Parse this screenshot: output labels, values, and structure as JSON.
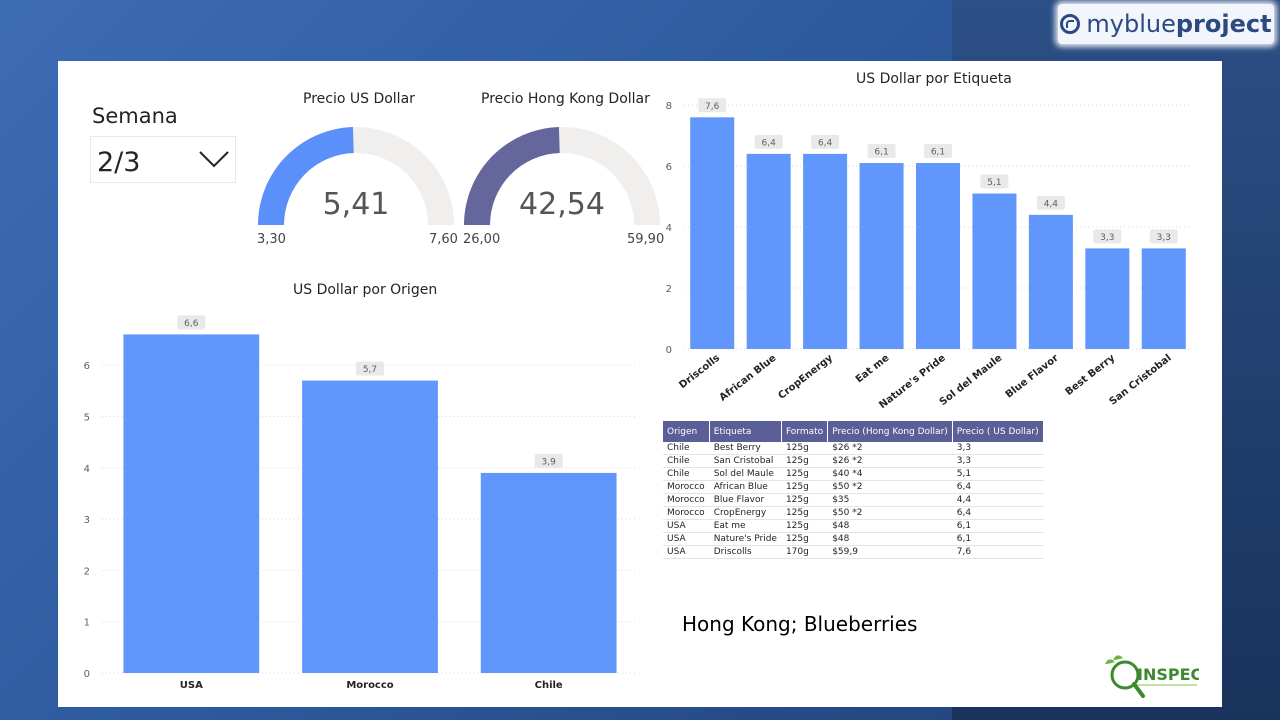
{
  "logo": {
    "light": "myblue",
    "bold": "project"
  },
  "slicer": {
    "title": "Semana",
    "value": "2/3"
  },
  "gauge_usd": {
    "title": "Precio US Dollar",
    "value": "5,41",
    "min": "3,30",
    "max": "7,60",
    "fraction": 0.49,
    "color": "#5b8ff9"
  },
  "gauge_hkd": {
    "title": "Precio Hong Kong Dollar",
    "value": "42,54",
    "min": "26,00",
    "max": "59,90",
    "fraction": 0.49,
    "color": "#64669c"
  },
  "chart_data": [
    {
      "type": "bar",
      "title": "US Dollar por Origen",
      "categories": [
        "USA",
        "Morocco",
        "Chile"
      ],
      "values": [
        6.6,
        5.7,
        3.9
      ],
      "labels": [
        "6,6",
        "5,7",
        "3,9"
      ],
      "yticks": [
        0,
        1,
        2,
        3,
        4,
        5,
        6
      ],
      "ylim": [
        0,
        6.9
      ],
      "grid": true,
      "color": "#6197fd"
    },
    {
      "type": "bar",
      "title": "US Dollar por Etiqueta",
      "categories": [
        "Driscolls",
        "African Blue",
        "CropEnergy",
        "Eat me",
        "Nature's Pride",
        "Sol del Maule",
        "Blue Flavor",
        "Best Berry",
        "San Cristobal"
      ],
      "values": [
        7.6,
        6.4,
        6.4,
        6.1,
        6.1,
        5.1,
        4.4,
        3.3,
        3.3
      ],
      "labels": [
        "7,6",
        "6,4",
        "6,4",
        "6,1",
        "6,1",
        "5,1",
        "4,4",
        "3,3",
        "3,3"
      ],
      "yticks": [
        0,
        2,
        4,
        6,
        8
      ],
      "ylim": [
        0,
        8.2
      ],
      "grid": true,
      "color": "#6197fd"
    }
  ],
  "table": {
    "headers": [
      "Origen",
      "Etiqueta",
      "Formato",
      "Precio (Hong Kong Dollar)",
      "Precio ( US Dollar)"
    ],
    "rows": [
      [
        "Chile",
        "Best Berry",
        "125g",
        "$26 *2",
        "3,3"
      ],
      [
        "Chile",
        "San Cristobal",
        "125g",
        "$26 *2",
        "3,3"
      ],
      [
        "Chile",
        "Sol del Maule",
        "125g",
        "$40 *4",
        "5,1"
      ],
      [
        "Morocco",
        "African Blue",
        "125g",
        "$50 *2",
        "6,4"
      ],
      [
        "Morocco",
        "Blue Flavor",
        "125g",
        "$35",
        "4,4"
      ],
      [
        "Morocco",
        "CropEnergy",
        "125g",
        "$50 *2",
        "6,4"
      ],
      [
        "USA",
        "Eat me",
        "125g",
        "$48",
        "6,1"
      ],
      [
        "USA",
        "Nature's Pride",
        "125g",
        "$48",
        "6,1"
      ],
      [
        "USA",
        "Driscolls",
        "170g",
        "$59,9",
        "7,6"
      ]
    ]
  },
  "caption": "Hong Kong; Blueberries",
  "inspec_logo": {
    "text": "INSPEC"
  }
}
